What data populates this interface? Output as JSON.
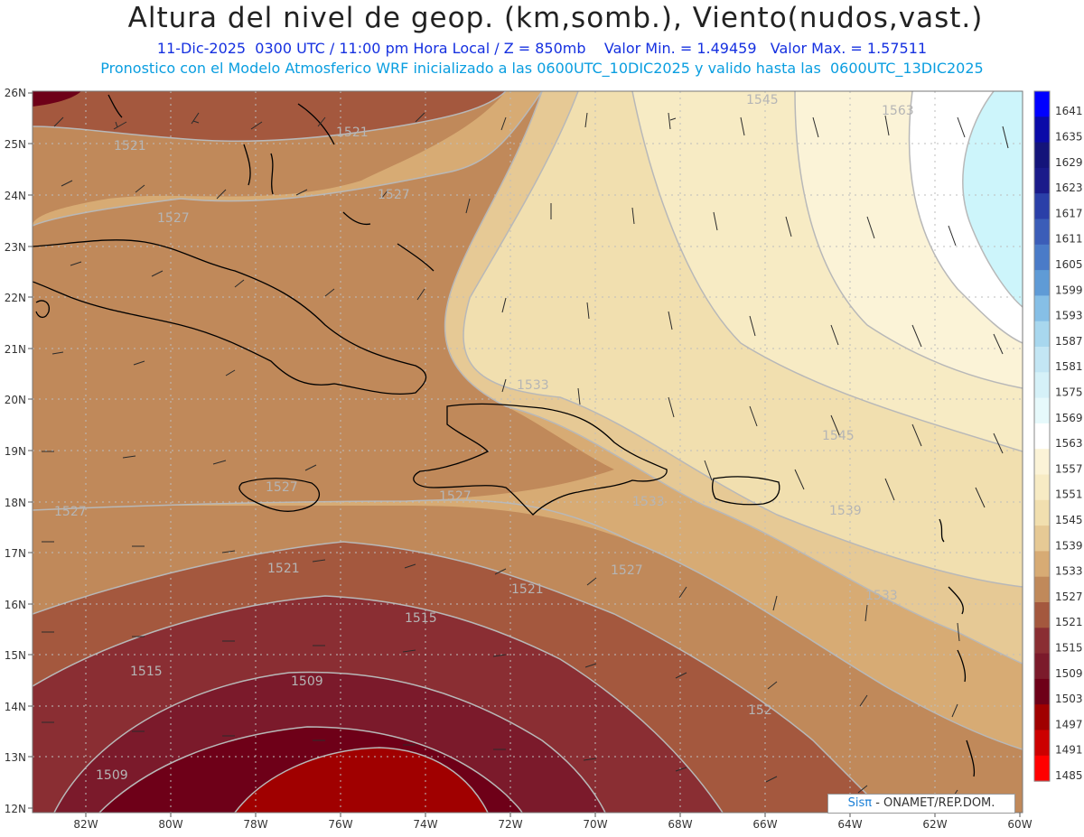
{
  "header": {
    "title": "Altura del nivel de geop. (km,somb.), Viento(nudos,vast.)",
    "subtitle": "11-Dic-2025  0300 UTC / 11:00 pm Hora Local / Z = 850mb    Valor Min. = 1.49459   Valor Max. = 1.57511",
    "model_line": "Pronostico con el Modelo Atmosferico WRF inicializado a las 0600UTC_10DIC2025 y valido hasta las  0600UTC_13DIC2025"
  },
  "axes": {
    "lat_labels": [
      "26N",
      "25N",
      "24N",
      "23N",
      "22N",
      "21N",
      "20N",
      "19N",
      "18N",
      "17N",
      "16N",
      "15N",
      "14N",
      "13N",
      "12N"
    ],
    "lon_labels": [
      "82W",
      "80W",
      "78W",
      "76W",
      "74W",
      "72W",
      "70W",
      "68W",
      "66W",
      "64W",
      "62W",
      "60W"
    ]
  },
  "contour_labels": [
    {
      "id": "c1",
      "text": "1545"
    },
    {
      "id": "c2",
      "text": "1563"
    },
    {
      "id": "c3",
      "text": "1521"
    },
    {
      "id": "c4",
      "text": "1521"
    },
    {
      "id": "c5",
      "text": "1527"
    },
    {
      "id": "c6",
      "text": "1527"
    },
    {
      "id": "c7",
      "text": "1533"
    },
    {
      "id": "c8",
      "text": "1545"
    },
    {
      "id": "c9",
      "text": "1527"
    },
    {
      "id": "c10",
      "text": "1527"
    },
    {
      "id": "c11",
      "text": "1527"
    },
    {
      "id": "c12",
      "text": "1533"
    },
    {
      "id": "c13",
      "text": "1539"
    },
    {
      "id": "c14",
      "text": "1521"
    },
    {
      "id": "c15",
      "text": "1527"
    },
    {
      "id": "c16",
      "text": "1521"
    },
    {
      "id": "c17",
      "text": "1533"
    },
    {
      "id": "c18",
      "text": "1515"
    },
    {
      "id": "c19",
      "text": "1515"
    },
    {
      "id": "c20",
      "text": "1509"
    },
    {
      "id": "c21",
      "text": "152"
    },
    {
      "id": "c22",
      "text": "1509"
    }
  ],
  "colorbar": {
    "labels": [
      "1641",
      "1635",
      "1629",
      "1623",
      "1617",
      "1611",
      "1605",
      "1599",
      "1593",
      "1587",
      "1581",
      "1575",
      "1569",
      "1563",
      "1557",
      "1551",
      "1545",
      "1539",
      "1533",
      "1527",
      "1521",
      "1515",
      "1509",
      "1503",
      "1497",
      "1491",
      "1485"
    ],
    "colors": [
      "#0000ff",
      "#0a0aa8",
      "#14147a",
      "#1a1a8a",
      "#2a3fa8",
      "#3b5db8",
      "#4a7bc8",
      "#5f9bd6",
      "#86bfe6",
      "#a8d7ee",
      "#c3e6f4",
      "#d5f1f8",
      "#e6f9fb",
      "#ffffff",
      "#fbf3d7",
      "#f7ebc4",
      "#f1dfaf",
      "#e6c995",
      "#d7ab74",
      "#c0895a",
      "#a4583e",
      "#8a2e33",
      "#7b1a2b",
      "#6e0018",
      "#a00000",
      "#cc0000",
      "#ff0000"
    ]
  },
  "map_colors": {
    "land": "#000000",
    "grid": "#bdbdbd",
    "contour": "#b8b8b8",
    "barb": "#2b2b2b"
  },
  "credit": {
    "brand": "Sisπ",
    "org": " - ONAMET/REP.DOM."
  }
}
